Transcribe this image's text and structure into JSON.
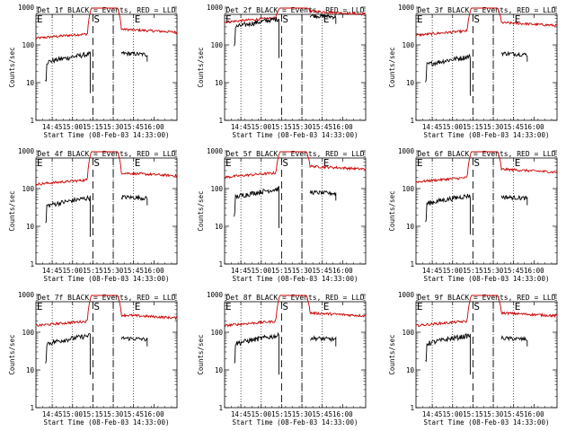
{
  "chart_data": {
    "type": "line",
    "layout": "3x3 grid",
    "xlabel": "Start Time (08-Feb-03 14:33:00)",
    "ylabel": "Counts/sec",
    "x_tick_labels": [
      "14:45",
      "15:00",
      "15:15",
      "15:30",
      "15:45",
      "16:00"
    ],
    "x_ticks_minutes": [
      12,
      27,
      42,
      57,
      72,
      87
    ],
    "xlim_minutes": [
      0,
      104
    ],
    "y_scale": "log",
    "ylim": [
      1,
      1000
    ],
    "y_tick_labels": [
      "1",
      "10",
      "100",
      "1000"
    ],
    "dotted_lines_minutes": [
      12,
      27,
      57,
      72
    ],
    "dashed_lines_minutes": [
      42,
      57
    ],
    "markers": [
      {
        "label": "E",
        "x_minutes": 0
      },
      {
        "label": "S",
        "x_minutes": 42
      },
      {
        "label": "E",
        "x_minutes": 72
      }
    ],
    "series_colors": {
      "events": "#000000",
      "lld": "#cc0000"
    },
    "panels": [
      {
        "title": "Det 1f BLACK = Events, RED = LLD",
        "events_level": [
          35,
          60
        ],
        "lld_level": [
          150,
          200
        ],
        "peak": 1000
      },
      {
        "title": "Det 2f BLACK = Events, RED = LLD",
        "events_level": [
          300,
          600
        ],
        "lld_level": [
          400,
          600
        ],
        "peak": 1000
      },
      {
        "title": "Det 3f BLACK = Events, RED = LLD",
        "events_level": [
          30,
          60
        ],
        "lld_level": [
          180,
          300
        ],
        "peak": 1000
      },
      {
        "title": "Det 4f BLACK = Events, RED = LLD",
        "events_level": [
          35,
          60
        ],
        "lld_level": [
          130,
          200
        ],
        "peak": 1000
      },
      {
        "title": "Det 5f BLACK = Events, RED = LLD",
        "events_level": [
          60,
          80
        ],
        "lld_level": [
          200,
          300
        ],
        "peak": 1000
      },
      {
        "title": "Det 6f BLACK = Events, RED = LLD",
        "events_level": [
          40,
          60
        ],
        "lld_level": [
          150,
          250
        ],
        "peak": 1000
      },
      {
        "title": "Det 7f BLACK = Events, RED = LLD",
        "events_level": [
          50,
          70
        ],
        "lld_level": [
          150,
          220
        ],
        "peak": 1000
      },
      {
        "title": "Det 8f BLACK = Events, RED = LLD",
        "events_level": [
          50,
          70
        ],
        "lld_level": [
          150,
          250
        ],
        "peak": 1000
      },
      {
        "title": "Det 9f BLACK = Events, RED = LLD",
        "events_level": [
          50,
          70
        ],
        "lld_level": [
          150,
          250
        ],
        "peak": 1000
      }
    ]
  }
}
